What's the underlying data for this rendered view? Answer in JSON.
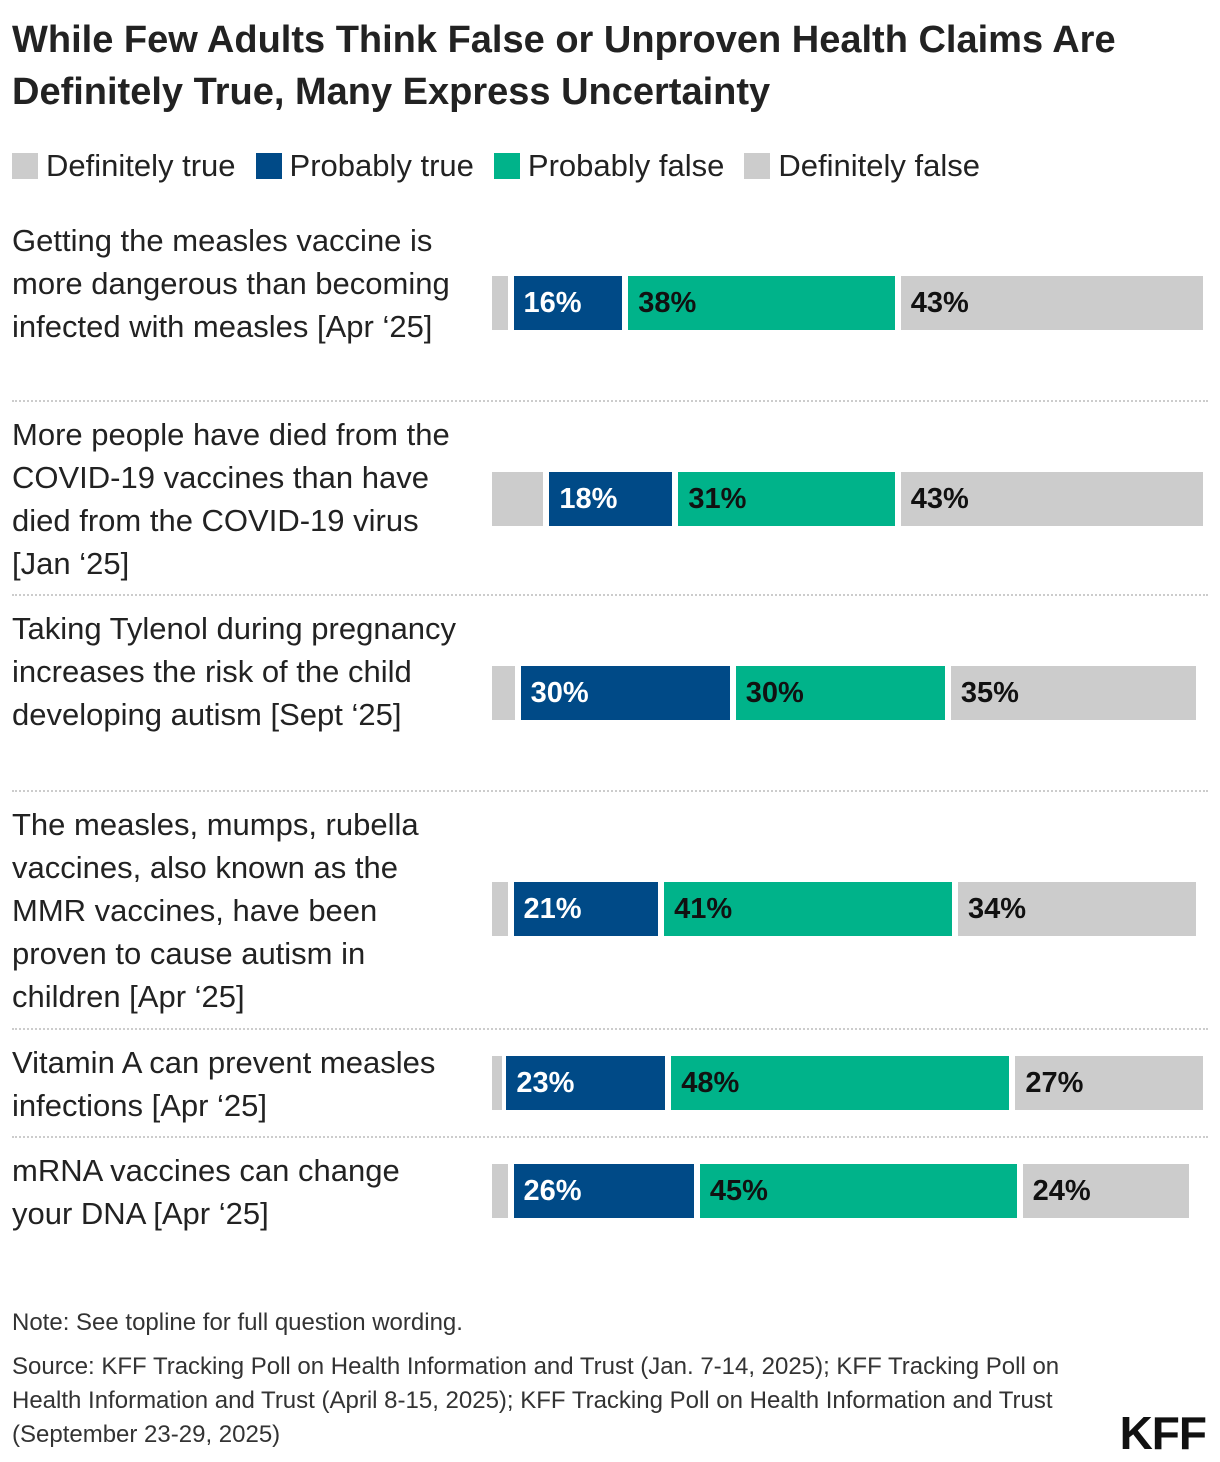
{
  "chart_data": {
    "type": "bar",
    "orientation": "horizontal-stacked",
    "title": "While Few Adults Think False or Unproven Health Claims Are Definitely True, Many Express Uncertainty",
    "legend": [
      "Definitely true",
      "Probably true",
      "Probably false",
      "Definitely false"
    ],
    "colors": [
      "#cccccc",
      "#004a87",
      "#00b38a",
      "#cccccc"
    ],
    "label_colors": [
      "#222222",
      "#ffffff",
      "#111111",
      "#111111"
    ],
    "categories": [
      "Getting the measles vaccine is more dangerous than becoming infected with measles [Apr ‘25]",
      "More people have died from the COVID-19 vaccines than have died from the COVID-19 virus [Jan ‘25]",
      "Taking Tylenol during pregnancy increases the risk of the child developing autism [Sept ‘25]",
      "The measles, mumps, rubella vaccines, also known as the MMR vaccines, have been proven to cause autism in children [Apr ‘25]",
      "Vitamin A can prevent measles infections [Apr ‘25]",
      "mRNA vaccines can change your DNA [Apr ‘25]"
    ],
    "series": [
      {
        "name": "Definitely true",
        "values": [
          3,
          8,
          4,
          3,
          2,
          3
        ],
        "labels": [
          "",
          "",
          "",
          "",
          "",
          ""
        ]
      },
      {
        "name": "Probably true",
        "values": [
          16,
          18,
          30,
          21,
          23,
          26
        ],
        "labels": [
          "16%",
          "18%",
          "30%",
          "21%",
          "23%",
          "26%"
        ]
      },
      {
        "name": "Probably false",
        "values": [
          38,
          31,
          30,
          41,
          48,
          45
        ],
        "labels": [
          "38%",
          "31%",
          "30%",
          "41%",
          "48%",
          "45%"
        ]
      },
      {
        "name": "Definitely false",
        "values": [
          43,
          43,
          35,
          34,
          27,
          24
        ],
        "labels": [
          "43%",
          "43%",
          "35%",
          "34%",
          "27%",
          "24%"
        ]
      }
    ],
    "xlim": [
      0,
      100
    ]
  },
  "note": "Note: See topline for full question wording.",
  "source": "Source: KFF Tracking Poll on Health Information and Trust (Jan. 7-14, 2025); KFF Tracking Poll on Health Information and Trust (April 8-15, 2025); KFF Tracking Poll on Health Information and Trust (September 23-29, 2025)",
  "logo": "KFF"
}
